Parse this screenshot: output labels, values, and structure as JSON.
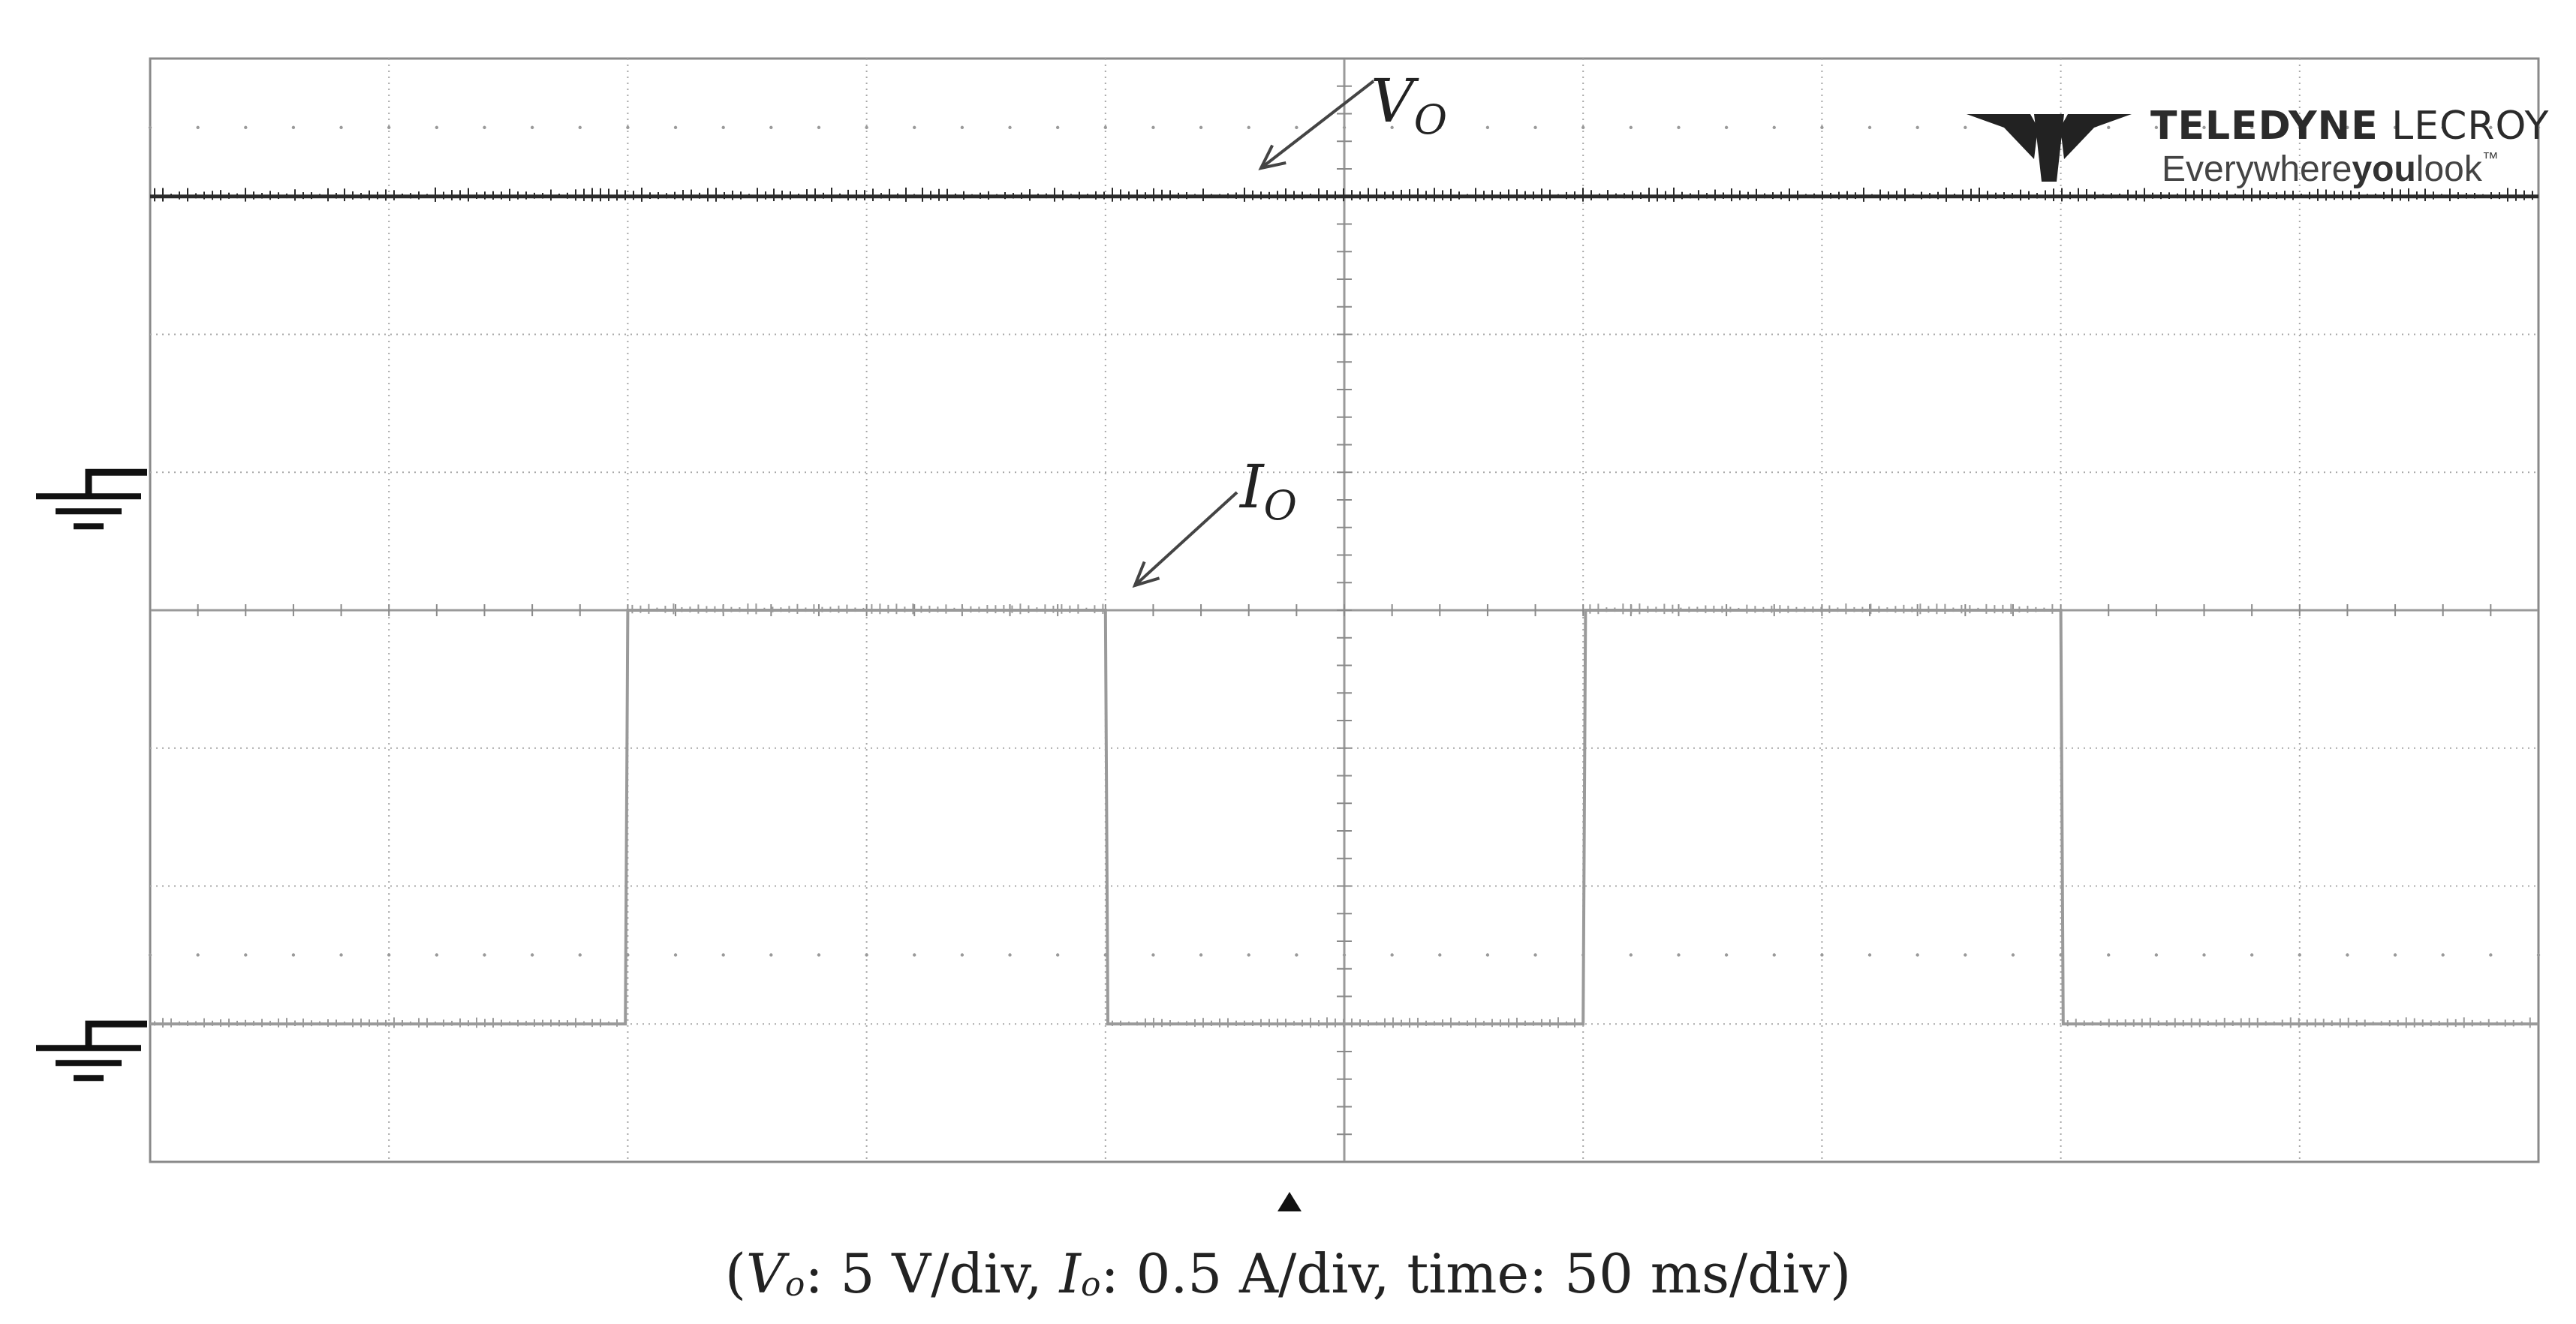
{
  "chart_data": {
    "type": "line",
    "title": "",
    "grid": true,
    "divisions": {
      "x": 10,
      "y": 8
    },
    "series": [
      {
        "name": "V_O",
        "label_main": "V",
        "label_sub": "O",
        "color": "#2a2a2a",
        "ground_level_div_from_top": 3,
        "x_div": [
          0,
          10
        ],
        "y_div_above_ground": [
          2,
          2
        ]
      },
      {
        "name": "I_O",
        "label_main": "I",
        "label_sub": "O",
        "color": "#9a9a9a",
        "ground_level_div_from_top": 7,
        "x_div": [
          0,
          1.99,
          2.0,
          4.0,
          4.01,
          6.0,
          6.01,
          8.0,
          8.01,
          10.0
        ],
        "y_div_above_ground": [
          0,
          0,
          3,
          3,
          0,
          0,
          3,
          3,
          0,
          0
        ]
      }
    ]
  },
  "logo": {
    "brand_bold": "TELEDYNE",
    "brand_light": " LECROY",
    "tagline_a": "Everywhere",
    "tagline_b": "you",
    "tagline_c": "look",
    "tm": "™"
  },
  "caption": {
    "open": "(",
    "vo_main": "V",
    "vo_sub": "o",
    "vo_text": ": 5 V/div, ",
    "io_main": "I",
    "io_sub": "o",
    "io_text": ": 0.5 A/div, time: 50 ms/div)"
  }
}
